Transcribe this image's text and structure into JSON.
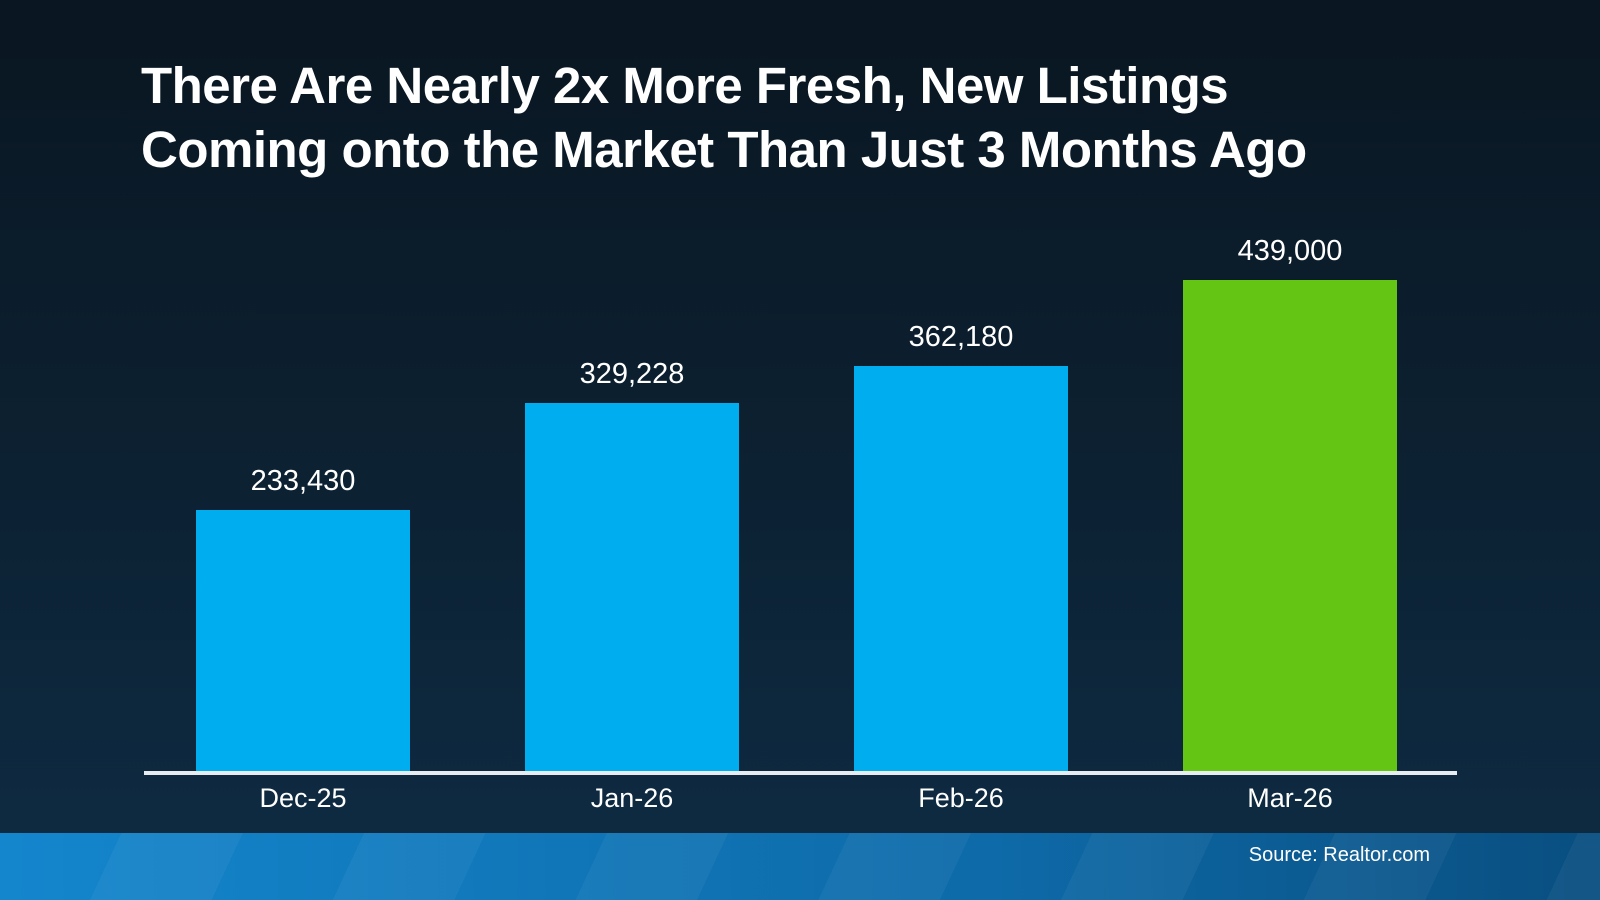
{
  "title": {
    "line1": "There Are Nearly 2x More Fresh, New Listings",
    "line2": "Coming onto the Market Than Just 3 Months Ago"
  },
  "footer": {
    "source": "Source: Realtor.com"
  },
  "colors": {
    "background_top": "#0a1621",
    "background_mid": "#0c2132",
    "background_bottom": "#0e2c44",
    "bar_blue": "#00aeef",
    "bar_green": "#64c514",
    "axis_line": "#e6ecf0",
    "footer_left": "#1486cd",
    "footer_mid": "#0e6aa8",
    "footer_right": "#094e80",
    "text": "#ffffff"
  },
  "chart_data": {
    "type": "bar",
    "title": "There Are Nearly 2x More Fresh, New Listings Coming onto the Market Than Just 3 Months Ago",
    "categories": [
      "Dec-25",
      "Jan-26",
      "Feb-26",
      "Mar-26"
    ],
    "values": [
      233430,
      329228,
      362180,
      439000
    ],
    "value_labels": [
      "233,430",
      "329,228",
      "362,180",
      "439,000"
    ],
    "bar_colors": [
      "#00aeef",
      "#00aeef",
      "#00aeef",
      "#64c514"
    ],
    "xlabel": "",
    "ylabel": "",
    "ylim": [
      0,
      439000
    ],
    "grid": false,
    "legend": false,
    "y_axis_visible": false,
    "annotations": "value data labels above each bar; final bar (Mar-26) highlighted in green"
  }
}
